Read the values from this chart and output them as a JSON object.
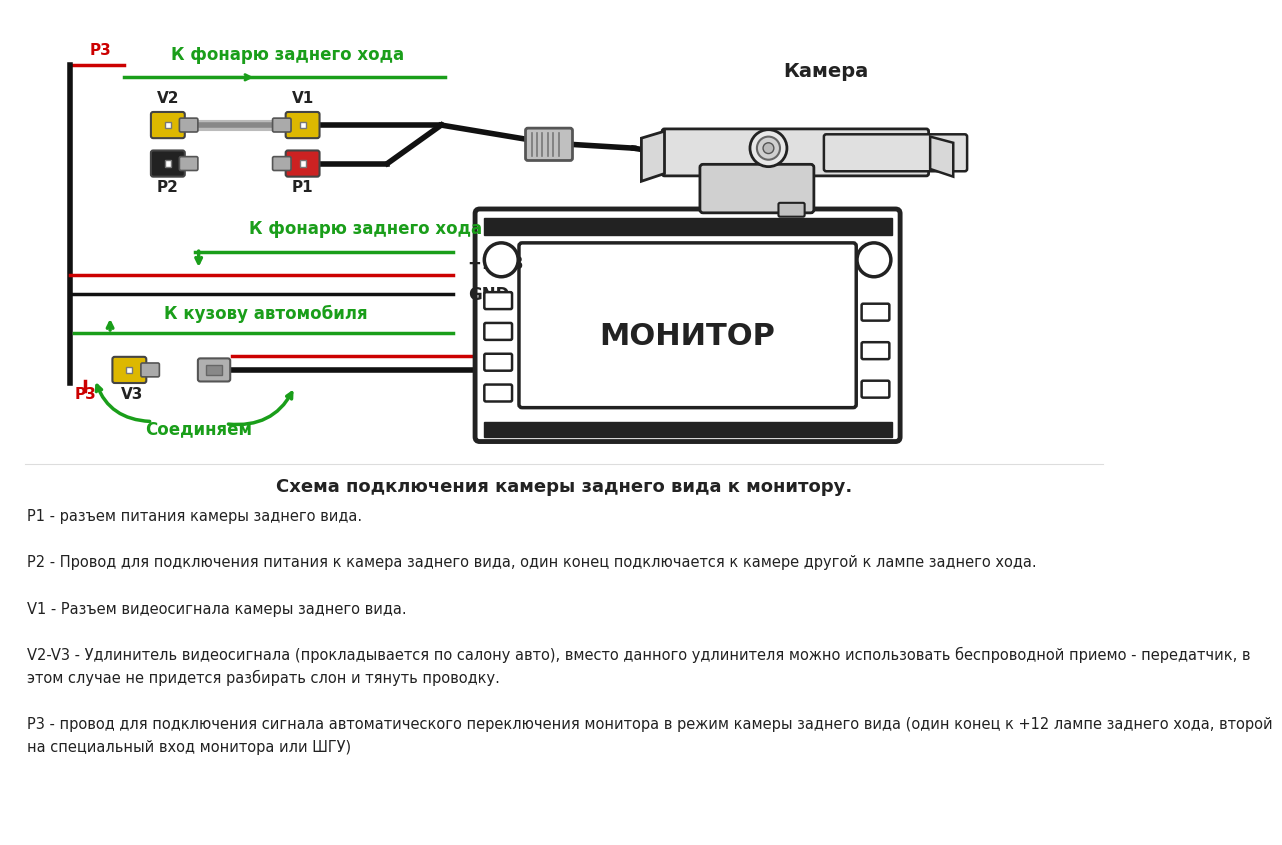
{
  "bg_color": "#ffffff",
  "title_text": "Схема подключения камеры заднего вида к монитору.",
  "desc_lines": [
    "Р1 - разъем питания камеры заднего вида.",
    "Р2 - Провод для подключения питания к камера заднего вида, один конец подключается к камере другой к лампе заднего хода.",
    "V1 - Разъем видеосигнала камеры заднего вида.",
    "V2-V3 - Удлинитель видеосигнала (прокладывается по салону авто), вместо данного удлинителя можно использовать беспроводной приемо - передатчик, в",
    "этом случае не придется разбирать слон и тянуть проводку.",
    "Р3 - провод для подключения сигнала автоматического переключения монитора в режим камеры заднего вида (один конец к +12 лампе заднего хода, второй",
    "на специальный вход монитора или ШГУ)"
  ],
  "label_camera": "Камера",
  "label_monitor": "МОНИТОР",
  "label_p1": "P1",
  "label_p2": "P2",
  "label_v1": "V1",
  "label_v2": "V2",
  "label_v3": "V3",
  "label_p3": "P3",
  "label_12v": "+12 В",
  "label_gnd": "GND",
  "label_k_fonaru1": "К фонарю заднего хода",
  "label_k_fonaru2": "К фонарю заднего хода",
  "label_k_kuzovu": "К кузову автомобиля",
  "label_soedinyaem": "Соединяем",
  "color_green": "#1a9e1a",
  "color_red": "#cc0000",
  "color_black": "#111111",
  "color_yellow": "#ddb800",
  "color_dark": "#222222",
  "color_gray": "#888888",
  "color_light_gray": "#cccccc"
}
